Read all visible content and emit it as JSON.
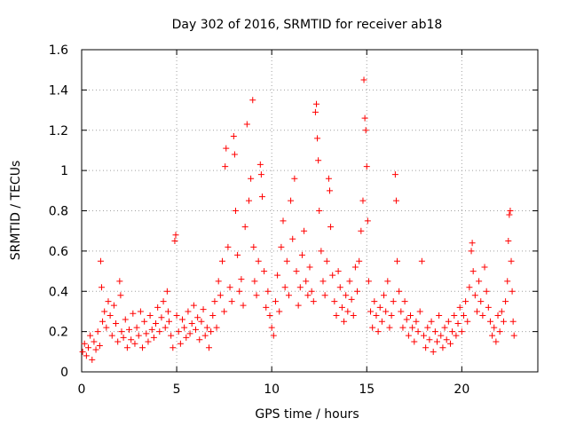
{
  "chart_data": {
    "type": "scatter",
    "title": "Day 302 of 2016, SRMTID for receiver ab18",
    "xlabel": "GPS time / hours",
    "ylabel": "SRMTID / TECUs",
    "xlim": [
      0,
      24
    ],
    "ylim": [
      0,
      1.6
    ],
    "xticks": [
      0,
      5,
      10,
      15,
      20
    ],
    "xtick_labels": [
      "0",
      "5",
      "10",
      "15",
      "20"
    ],
    "yticks": [
      0,
      0.2,
      0.4,
      0.6,
      0.8,
      1.0,
      1.2,
      1.4,
      1.6
    ],
    "ytick_labels": [
      "0",
      "0.2",
      "0.4",
      "0.6",
      "0.8",
      "1",
      "1.2",
      "1.4",
      "1.6"
    ],
    "grid": true,
    "marker": "+",
    "color": "#ff0000",
    "series": [
      {
        "name": "SRMTID",
        "points": [
          [
            0.05,
            0.1
          ],
          [
            0.15,
            0.14
          ],
          [
            0.25,
            0.08
          ],
          [
            0.35,
            0.12
          ],
          [
            0.45,
            0.18
          ],
          [
            0.55,
            0.06
          ],
          [
            0.65,
            0.15
          ],
          [
            0.75,
            0.11
          ],
          [
            0.85,
            0.2
          ],
          [
            0.95,
            0.13
          ],
          [
            1.0,
            0.55
          ],
          [
            1.05,
            0.42
          ],
          [
            1.1,
            0.25
          ],
          [
            1.2,
            0.3
          ],
          [
            1.3,
            0.22
          ],
          [
            1.4,
            0.35
          ],
          [
            1.5,
            0.28
          ],
          [
            1.6,
            0.18
          ],
          [
            1.7,
            0.33
          ],
          [
            1.8,
            0.24
          ],
          [
            1.9,
            0.15
          ],
          [
            2.0,
            0.45
          ],
          [
            2.05,
            0.38
          ],
          [
            2.1,
            0.2
          ],
          [
            2.2,
            0.17
          ],
          [
            2.3,
            0.26
          ],
          [
            2.4,
            0.12
          ],
          [
            2.5,
            0.21
          ],
          [
            2.6,
            0.16
          ],
          [
            2.7,
            0.29
          ],
          [
            2.8,
            0.14
          ],
          [
            2.9,
            0.22
          ],
          [
            3.0,
            0.18
          ],
          [
            3.1,
            0.3
          ],
          [
            3.2,
            0.12
          ],
          [
            3.3,
            0.25
          ],
          [
            3.4,
            0.19
          ],
          [
            3.5,
            0.15
          ],
          [
            3.6,
            0.28
          ],
          [
            3.7,
            0.21
          ],
          [
            3.8,
            0.17
          ],
          [
            3.9,
            0.24
          ],
          [
            4.0,
            0.32
          ],
          [
            4.1,
            0.2
          ],
          [
            4.2,
            0.27
          ],
          [
            4.3,
            0.35
          ],
          [
            4.4,
            0.22
          ],
          [
            4.5,
            0.4
          ],
          [
            4.55,
            0.3
          ],
          [
            4.6,
            0.25
          ],
          [
            4.7,
            0.18
          ],
          [
            4.8,
            0.12
          ],
          [
            4.9,
            0.65
          ],
          [
            4.95,
            0.68
          ],
          [
            5.0,
            0.28
          ],
          [
            5.1,
            0.2
          ],
          [
            5.2,
            0.14
          ],
          [
            5.3,
            0.26
          ],
          [
            5.4,
            0.22
          ],
          [
            5.5,
            0.17
          ],
          [
            5.6,
            0.3
          ],
          [
            5.7,
            0.19
          ],
          [
            5.8,
            0.24
          ],
          [
            5.9,
            0.33
          ],
          [
            6.0,
            0.21
          ],
          [
            6.1,
            0.27
          ],
          [
            6.2,
            0.16
          ],
          [
            6.3,
            0.25
          ],
          [
            6.4,
            0.31
          ],
          [
            6.5,
            0.18
          ],
          [
            6.6,
            0.22
          ],
          [
            6.7,
            0.12
          ],
          [
            6.8,
            0.2
          ],
          [
            6.9,
            0.28
          ],
          [
            7.0,
            0.35
          ],
          [
            7.1,
            0.22
          ],
          [
            7.2,
            0.45
          ],
          [
            7.3,
            0.38
          ],
          [
            7.4,
            0.55
          ],
          [
            7.5,
            0.3
          ],
          [
            7.55,
            1.02
          ],
          [
            7.6,
            1.11
          ],
          [
            7.7,
            0.62
          ],
          [
            7.8,
            0.42
          ],
          [
            7.9,
            0.35
          ],
          [
            8.0,
            1.17
          ],
          [
            8.05,
            1.08
          ],
          [
            8.1,
            0.8
          ],
          [
            8.2,
            0.58
          ],
          [
            8.3,
            0.4
          ],
          [
            8.4,
            0.46
          ],
          [
            8.5,
            0.33
          ],
          [
            8.6,
            0.72
          ],
          [
            8.7,
            1.23
          ],
          [
            8.8,
            0.85
          ],
          [
            8.9,
            0.96
          ],
          [
            9.0,
            1.35
          ],
          [
            9.05,
            0.62
          ],
          [
            9.1,
            0.45
          ],
          [
            9.2,
            0.38
          ],
          [
            9.3,
            0.55
          ],
          [
            9.4,
            1.03
          ],
          [
            9.45,
            0.98
          ],
          [
            9.5,
            0.87
          ],
          [
            9.6,
            0.5
          ],
          [
            9.7,
            0.32
          ],
          [
            9.8,
            0.4
          ],
          [
            9.9,
            0.28
          ],
          [
            10.0,
            0.22
          ],
          [
            10.1,
            0.18
          ],
          [
            10.2,
            0.35
          ],
          [
            10.3,
            0.48
          ],
          [
            10.4,
            0.3
          ],
          [
            10.5,
            0.62
          ],
          [
            10.6,
            0.75
          ],
          [
            10.7,
            0.42
          ],
          [
            10.8,
            0.55
          ],
          [
            10.9,
            0.38
          ],
          [
            11.0,
            0.85
          ],
          [
            11.1,
            0.66
          ],
          [
            11.2,
            0.96
          ],
          [
            11.3,
            0.5
          ],
          [
            11.4,
            0.33
          ],
          [
            11.5,
            0.42
          ],
          [
            11.6,
            0.58
          ],
          [
            11.7,
            0.7
          ],
          [
            11.8,
            0.45
          ],
          [
            11.9,
            0.38
          ],
          [
            12.0,
            0.52
          ],
          [
            12.1,
            0.4
          ],
          [
            12.2,
            0.35
          ],
          [
            12.3,
            1.29
          ],
          [
            12.35,
            1.33
          ],
          [
            12.4,
            1.16
          ],
          [
            12.45,
            1.05
          ],
          [
            12.5,
            0.8
          ],
          [
            12.6,
            0.6
          ],
          [
            12.7,
            0.45
          ],
          [
            12.8,
            0.38
          ],
          [
            12.9,
            0.55
          ],
          [
            13.0,
            0.96
          ],
          [
            13.05,
            0.9
          ],
          [
            13.1,
            0.72
          ],
          [
            13.2,
            0.48
          ],
          [
            13.3,
            0.35
          ],
          [
            13.4,
            0.28
          ],
          [
            13.5,
            0.5
          ],
          [
            13.6,
            0.42
          ],
          [
            13.7,
            0.32
          ],
          [
            13.8,
            0.25
          ],
          [
            13.9,
            0.38
          ],
          [
            14.0,
            0.3
          ],
          [
            14.1,
            0.45
          ],
          [
            14.2,
            0.36
          ],
          [
            14.3,
            0.28
          ],
          [
            14.4,
            0.52
          ],
          [
            14.5,
            0.4
          ],
          [
            14.6,
            0.55
          ],
          [
            14.7,
            0.7
          ],
          [
            14.8,
            0.85
          ],
          [
            14.85,
            1.45
          ],
          [
            14.9,
            1.26
          ],
          [
            14.95,
            1.2
          ],
          [
            15.0,
            1.02
          ],
          [
            15.05,
            0.75
          ],
          [
            15.1,
            0.45
          ],
          [
            15.2,
            0.3
          ],
          [
            15.3,
            0.22
          ],
          [
            15.4,
            0.35
          ],
          [
            15.5,
            0.28
          ],
          [
            15.6,
            0.2
          ],
          [
            15.7,
            0.32
          ],
          [
            15.8,
            0.25
          ],
          [
            15.9,
            0.38
          ],
          [
            16.0,
            0.3
          ],
          [
            16.1,
            0.45
          ],
          [
            16.2,
            0.22
          ],
          [
            16.3,
            0.28
          ],
          [
            16.4,
            0.35
          ],
          [
            16.5,
            0.98
          ],
          [
            16.55,
            0.85
          ],
          [
            16.6,
            0.55
          ],
          [
            16.7,
            0.4
          ],
          [
            16.8,
            0.3
          ],
          [
            16.9,
            0.22
          ],
          [
            17.0,
            0.35
          ],
          [
            17.1,
            0.26
          ],
          [
            17.2,
            0.18
          ],
          [
            17.3,
            0.28
          ],
          [
            17.4,
            0.22
          ],
          [
            17.5,
            0.15
          ],
          [
            17.6,
            0.25
          ],
          [
            17.7,
            0.2
          ],
          [
            17.8,
            0.3
          ],
          [
            17.9,
            0.55
          ],
          [
            18.0,
            0.18
          ],
          [
            18.1,
            0.12
          ],
          [
            18.2,
            0.22
          ],
          [
            18.3,
            0.16
          ],
          [
            18.4,
            0.25
          ],
          [
            18.5,
            0.1
          ],
          [
            18.6,
            0.2
          ],
          [
            18.7,
            0.15
          ],
          [
            18.8,
            0.28
          ],
          [
            18.9,
            0.18
          ],
          [
            19.0,
            0.12
          ],
          [
            19.1,
            0.22
          ],
          [
            19.2,
            0.16
          ],
          [
            19.3,
            0.25
          ],
          [
            19.4,
            0.14
          ],
          [
            19.5,
            0.2
          ],
          [
            19.6,
            0.28
          ],
          [
            19.7,
            0.18
          ],
          [
            19.8,
            0.24
          ],
          [
            19.9,
            0.32
          ],
          [
            20.0,
            0.2
          ],
          [
            20.1,
            0.28
          ],
          [
            20.2,
            0.35
          ],
          [
            20.3,
            0.25
          ],
          [
            20.4,
            0.42
          ],
          [
            20.5,
            0.6
          ],
          [
            20.55,
            0.64
          ],
          [
            20.6,
            0.5
          ],
          [
            20.7,
            0.38
          ],
          [
            20.8,
            0.3
          ],
          [
            20.9,
            0.45
          ],
          [
            21.0,
            0.35
          ],
          [
            21.1,
            0.28
          ],
          [
            21.2,
            0.52
          ],
          [
            21.3,
            0.4
          ],
          [
            21.4,
            0.32
          ],
          [
            21.5,
            0.25
          ],
          [
            21.6,
            0.18
          ],
          [
            21.7,
            0.22
          ],
          [
            21.8,
            0.15
          ],
          [
            21.9,
            0.28
          ],
          [
            22.0,
            0.2
          ],
          [
            22.1,
            0.3
          ],
          [
            22.2,
            0.25
          ],
          [
            22.3,
            0.35
          ],
          [
            22.4,
            0.45
          ],
          [
            22.45,
            0.65
          ],
          [
            22.5,
            0.78
          ],
          [
            22.55,
            0.8
          ],
          [
            22.6,
            0.55
          ],
          [
            22.65,
            0.4
          ],
          [
            22.7,
            0.25
          ],
          [
            22.75,
            0.18
          ]
        ]
      }
    ]
  }
}
